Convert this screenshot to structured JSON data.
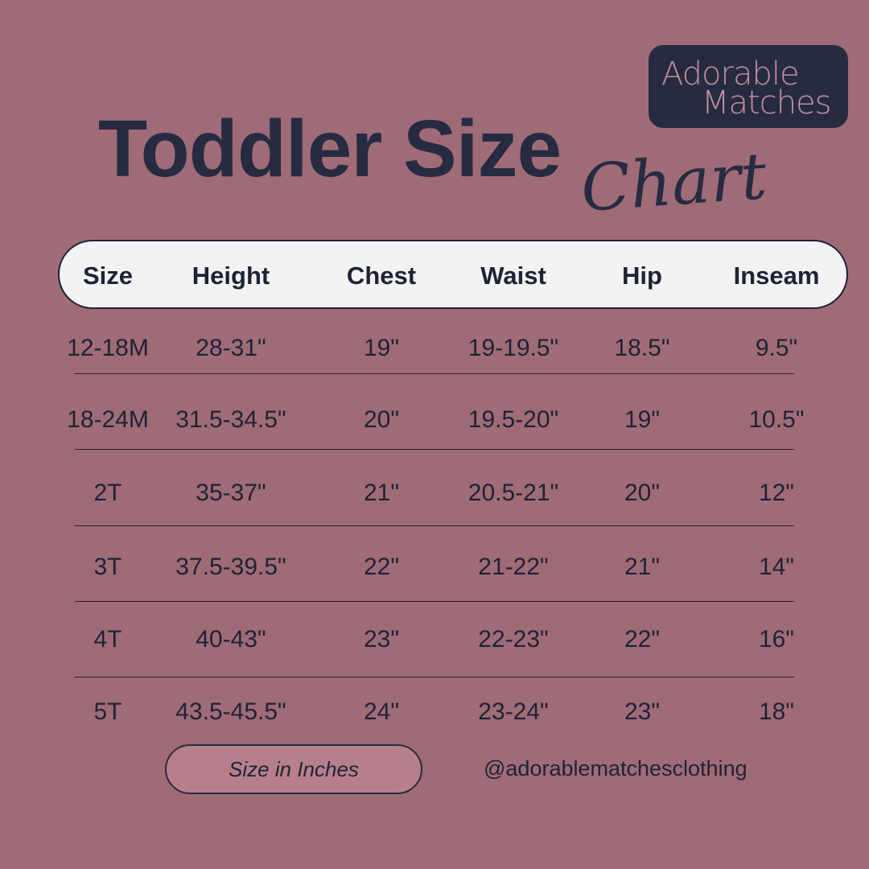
{
  "logo": {
    "line1": "Adorable",
    "line2": "Matches"
  },
  "title": {
    "main": "Toddler Size",
    "script": "Chart"
  },
  "table": {
    "headers": [
      "Size",
      "Height",
      "Chest",
      "Waist",
      "Hip",
      "Inseam"
    ],
    "rows": [
      [
        "12-18M",
        "28-31\"",
        "19\"",
        "19-19.5\"",
        "18.5\"",
        "9.5\""
      ],
      [
        "18-24M",
        "31.5-34.5\"",
        "20\"",
        "19.5-20\"",
        "19\"",
        "10.5\""
      ],
      [
        "2T",
        "35-37\"",
        "21\"",
        "20.5-21\"",
        "20\"",
        "12\""
      ],
      [
        "3T",
        "37.5-39.5\"",
        "22\"",
        "21-22\"",
        "21\"",
        "14\""
      ],
      [
        "4T",
        "40-43\"",
        "23\"",
        "22-23\"",
        "22\"",
        "16\""
      ],
      [
        "5T",
        "43.5-45.5\"",
        "24\"",
        "23-24\"",
        "23\"",
        "18\""
      ]
    ]
  },
  "footer": {
    "unit_note": "Size in Inches",
    "handle": "@adorablematchesclothing"
  },
  "colors": {
    "background": "#9f6b77",
    "dark": "#262b42",
    "header_bg": "#f3f3f4",
    "pill": "#b77f8c",
    "logo_text": "#c08e9c"
  }
}
